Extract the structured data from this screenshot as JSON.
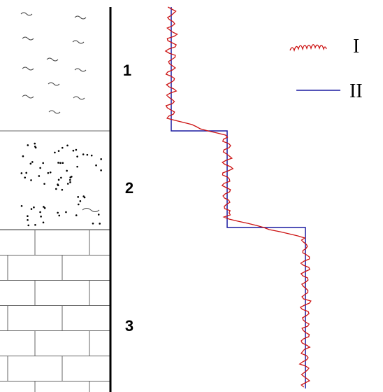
{
  "layers": [
    {
      "label": "1"
    },
    {
      "label": "2"
    },
    {
      "label": "3"
    }
  ],
  "legend": [
    {
      "label": "I"
    },
    {
      "label": "II"
    }
  ]
}
